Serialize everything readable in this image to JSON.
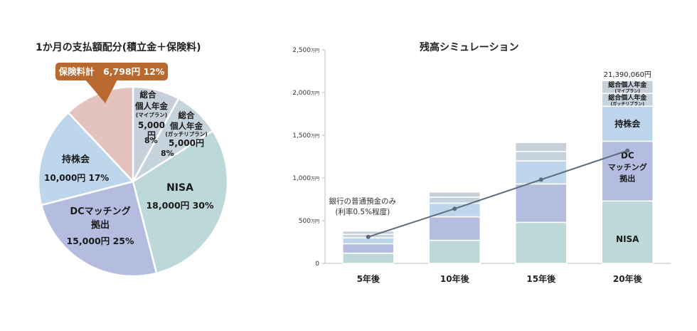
{
  "pie_title": "1か月の支払額配分(積立金＋保険料)",
  "bar_title": "残高シミュレーション",
  "colors": {
    "nisa": "#bcd8d9",
    "dc": "#b4bddf",
    "mochikabu": "#bdd6ec",
    "gacchiri": "#c5d3dc",
    "myplan": "#c7cfdb",
    "hoken": "#e3c2c0",
    "callout": "#b7692f",
    "line": "#5b6b7c"
  },
  "chart_data": [
    {
      "type": "pie",
      "title": "1か月の支払額配分(積立金＋保険料)",
      "slices": [
        {
          "key": "nisa",
          "label": "NISA",
          "amount": "18,000円",
          "percent": 30
        },
        {
          "key": "dc",
          "label": "DCマッチング拠出",
          "label_lines": [
            "DCマッチング",
            "拠出"
          ],
          "amount": "15,000円",
          "percent": 25
        },
        {
          "key": "mochikabu",
          "label": "持株会",
          "amount": "10,000円",
          "percent": 17
        },
        {
          "key": "hoken",
          "label": "保険料計",
          "amount": "6,798円",
          "percent": 12
        },
        {
          "key": "myplan",
          "label": "総合個人年金(マイプラン)",
          "label_lines": [
            "総合",
            "個人年金"
          ],
          "sub": "(マイプラン)",
          "amount_lines": [
            "5,000",
            "円"
          ],
          "amount": "5,000円",
          "percent": 8
        },
        {
          "key": "gacchiri",
          "label": "総合個人年金(ガッチリプラン)",
          "label_lines": [
            "総合",
            "個人年金"
          ],
          "sub": "(ガッチリプラン)",
          "amount": "5,000円",
          "percent": 8
        }
      ],
      "callout": "保険料計　6,798円 12%"
    },
    {
      "type": "bar",
      "stacked": true,
      "title": "残高シミュレーション",
      "categories": [
        "5年後",
        "10年後",
        "15年後",
        "20年後"
      ],
      "ylim": [
        0,
        2500
      ],
      "yticks": [
        {
          "value": 0,
          "label": "0",
          "unit": ""
        },
        {
          "value": 500,
          "label": "500",
          "unit": "万円"
        },
        {
          "value": 1000,
          "label": "1,000",
          "unit": "万円"
        },
        {
          "value": 1500,
          "label": "1,500",
          "unit": "万円"
        },
        {
          "value": 2000,
          "label": "2,000",
          "unit": "万円"
        },
        {
          "value": 2500,
          "label": "2,500",
          "unit": "万円"
        }
      ],
      "series": [
        {
          "key": "nisa",
          "name": "NISA",
          "values": [
            120,
            270,
            480,
            730
          ]
        },
        {
          "key": "dc",
          "name": "DC マッチング 拠出",
          "name_lines": [
            "DC",
            "マッチング",
            "拠出"
          ],
          "values": [
            110,
            275,
            450,
            700
          ]
        },
        {
          "key": "mochikabu",
          "name": "持株会",
          "values": [
            70,
            160,
            270,
            410
          ]
        },
        {
          "key": "gacchiri",
          "name": "総合個人年金(ガッチリプラン)",
          "name_line": "総合個人年金",
          "sub": "(ガッチリプラン)",
          "values": [
            40,
            70,
            110,
            150
          ]
        },
        {
          "key": "myplan",
          "name": "総合個人年金(マイプラン)",
          "name_line": "総合個人年金",
          "sub": "(マイプラン)",
          "values": [
            38,
            60,
            105,
            150
          ]
        }
      ],
      "series_labels_on": "20年後",
      "total_label": "21,390,060円",
      "total_label_on": "20年後",
      "line_series": {
        "name": "銀行の普通預金のみ(利率0.5%程度)",
        "name_lines": [
          "銀行の普通預金のみ",
          "(利率0.5%程度)"
        ],
        "values": [
          310,
          640,
          980,
          1320
        ]
      }
    }
  ]
}
